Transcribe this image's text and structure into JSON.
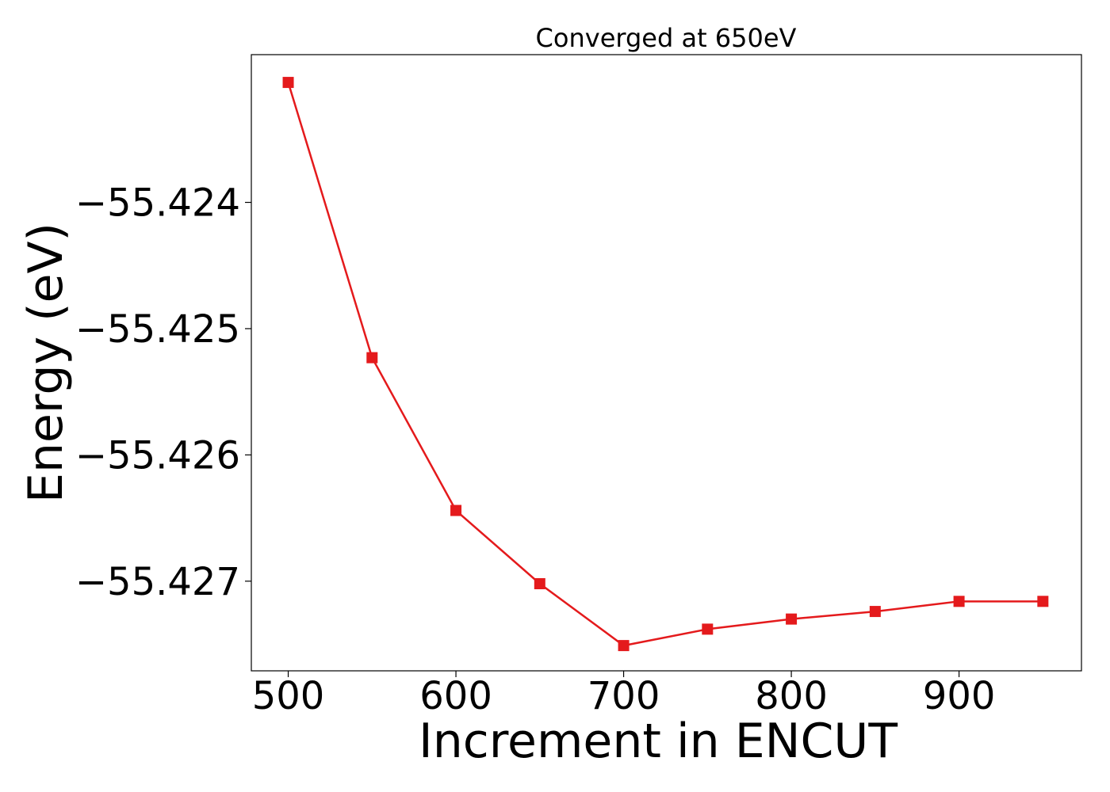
{
  "chart_data": {
    "type": "line",
    "title": "Converged at 650eV",
    "xlabel": "Increment in ENCUT",
    "ylabel": "Energy (eV)",
    "x": [
      500,
      550,
      600,
      650,
      700,
      750,
      800,
      850,
      900,
      950
    ],
    "series": [
      {
        "values": [
          -55.42305,
          -55.42523,
          -55.42644,
          -55.42702,
          -55.42751,
          -55.42738,
          -55.4273,
          -55.42724,
          -55.42716,
          -55.42716
        ],
        "color": "#e41a1c",
        "marker": "square"
      }
    ],
    "xticks": [
      500,
      600,
      700,
      800,
      900
    ],
    "xtick_labels": [
      "500",
      "600",
      "700",
      "800",
      "900"
    ],
    "yticks": [
      -55.424,
      -55.425,
      -55.426,
      -55.427
    ],
    "ytick_labels": [
      "−55.424",
      "−55.425",
      "−55.426",
      "−55.427"
    ],
    "xlim": [
      478,
      973
    ],
    "ylim": [
      -55.42771,
      -55.42283
    ],
    "grid": false,
    "legend": "none"
  }
}
